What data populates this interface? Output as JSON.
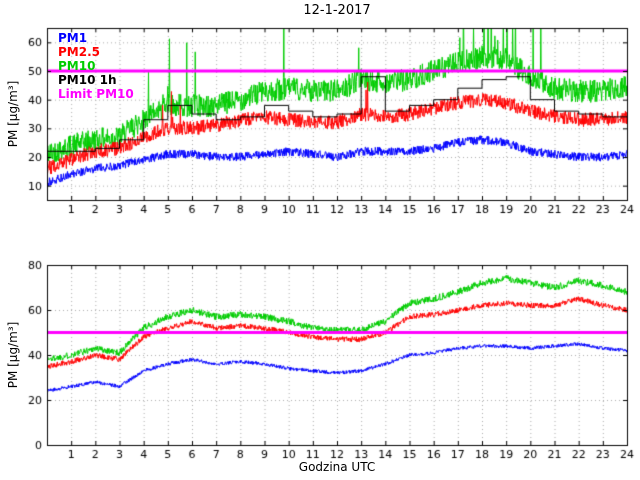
{
  "figure": {
    "title": "12-1-2017",
    "xlabel": "Godzina UTC",
    "ylabel": "PM [µg/m³]"
  },
  "legend": {
    "items": [
      {
        "label": "PM1",
        "color": "#0000ff"
      },
      {
        "label": "PM2.5",
        "color": "#ff0000"
      },
      {
        "label": "PM10",
        "color": "#00cc00"
      },
      {
        "label": "PM10 1h",
        "color": "#000000"
      },
      {
        "label": "Limit PM10",
        "color": "#ff00ff"
      }
    ]
  },
  "chart_data": [
    {
      "type": "line",
      "title": "12-1-2017",
      "ylabel": "PM [µg/m³]",
      "xlim": [
        0,
        24
      ],
      "ylim": [
        5,
        65
      ],
      "xticks": [
        1,
        2,
        3,
        4,
        5,
        6,
        7,
        8,
        9,
        10,
        11,
        12,
        13,
        14,
        15,
        16,
        17,
        18,
        19,
        20,
        21,
        22,
        23,
        24
      ],
      "yticks": [
        10,
        20,
        30,
        40,
        50,
        60
      ],
      "grid": true,
      "x_hours": [
        0,
        1,
        2,
        3,
        4,
        5,
        6,
        7,
        8,
        9,
        10,
        11,
        12,
        13,
        14,
        15,
        16,
        17,
        18,
        19,
        20,
        21,
        22,
        23,
        24
      ],
      "series": [
        {
          "name": "PM10",
          "color": "#00cc00",
          "noise": 4,
          "spike_prob": 0.05,
          "spike_amp": 30,
          "spike_windows": [
            [
              3.7,
              6.6
            ],
            [
              9.0,
              10.6
            ],
            [
              12.4,
              13.8
            ],
            [
              16.8,
              20.6
            ]
          ],
          "values": [
            21,
            24,
            26,
            27,
            33,
            38,
            38,
            38,
            40,
            43,
            44,
            43,
            43,
            47,
            46,
            47,
            50,
            53,
            55,
            54,
            48,
            44,
            43,
            43,
            45
          ]
        },
        {
          "name": "PM2.5",
          "color": "#ff0000",
          "noise": 2.5,
          "spike_prob": 0.03,
          "spike_amp": 14,
          "spike_windows": [
            [
              3.7,
              6.6
            ],
            [
              12.4,
              13.8
            ]
          ],
          "values": [
            16,
            19,
            22,
            23,
            27,
            30,
            30,
            31,
            33,
            34,
            33,
            32,
            32,
            35,
            34,
            35,
            37,
            39,
            40,
            39,
            36,
            34,
            33,
            33,
            34
          ]
        },
        {
          "name": "PM1",
          "color": "#0000ff",
          "noise": 1.5,
          "values": [
            11,
            14,
            16,
            17,
            19,
            21,
            21,
            20,
            20,
            21,
            22,
            21,
            20,
            22,
            22,
            22,
            23,
            25,
            26,
            25,
            22,
            21,
            20,
            20,
            21
          ]
        },
        {
          "name": "PM10 1h",
          "color": "#000000",
          "style": "step",
          "values": [
            22,
            22,
            23,
            26,
            33,
            38,
            35,
            33,
            34,
            38,
            36,
            34,
            35,
            48,
            36,
            38,
            40,
            44,
            47,
            48,
            40,
            36,
            35,
            34
          ]
        },
        {
          "name": "Limit PM10",
          "color": "#ff00ff",
          "style": "hline",
          "value": 50,
          "width": 3
        }
      ]
    },
    {
      "type": "line",
      "ylabel": "PM [µg/m³]",
      "xlabel": "Godzina UTC",
      "xlim": [
        0,
        24
      ],
      "ylim": [
        0,
        80
      ],
      "xticks": [
        1,
        2,
        3,
        4,
        5,
        6,
        7,
        8,
        9,
        10,
        11,
        12,
        13,
        14,
        15,
        16,
        17,
        18,
        19,
        20,
        21,
        22,
        23,
        24
      ],
      "yticks": [
        0,
        20,
        40,
        60,
        80
      ],
      "grid": true,
      "x_hours": [
        0,
        1,
        2,
        3,
        4,
        5,
        6,
        7,
        8,
        9,
        10,
        11,
        12,
        13,
        14,
        15,
        16,
        17,
        18,
        19,
        20,
        21,
        22,
        23,
        24
      ],
      "series": [
        {
          "name": "PM10",
          "color": "#00cc00",
          "noise": 1.5,
          "values": [
            38,
            40,
            43,
            41,
            52,
            57,
            60,
            57,
            58,
            57,
            55,
            52,
            51,
            51,
            55,
            63,
            65,
            68,
            72,
            74,
            72,
            70,
            73,
            71,
            68
          ]
        },
        {
          "name": "PM2.5",
          "color": "#ff0000",
          "noise": 1.2,
          "values": [
            35,
            37,
            40,
            38,
            48,
            52,
            55,
            52,
            53,
            52,
            50,
            48,
            47,
            47,
            50,
            57,
            58,
            60,
            62,
            63,
            62,
            62,
            65,
            62,
            60
          ]
        },
        {
          "name": "PM1",
          "color": "#0000ff",
          "noise": 0.8,
          "values": [
            24,
            26,
            28,
            26,
            33,
            36,
            38,
            36,
            37,
            36,
            34,
            33,
            32,
            33,
            36,
            40,
            41,
            43,
            44,
            44,
            43,
            44,
            45,
            43,
            42
          ]
        },
        {
          "name": "Limit PM10",
          "color": "#ff00ff",
          "style": "hline",
          "value": 50,
          "width": 3
        }
      ]
    }
  ]
}
